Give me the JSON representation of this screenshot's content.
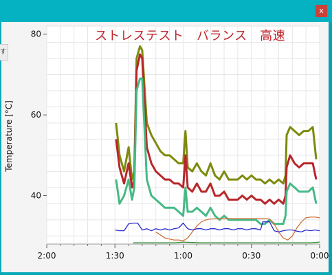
{
  "window": {
    "close_glyph": "x",
    "side_tab_text": "す"
  },
  "chart_data": {
    "type": "line",
    "title": "ストレステスト　バランス　高速",
    "ylabel": "Temperature [°C]",
    "xlabel": "",
    "x_tick_labels": [
      "2:00",
      "1:30",
      "1:00",
      "0:30",
      "0:00"
    ],
    "x_tick_values": [
      120,
      90,
      60,
      30,
      0
    ],
    "xlim": [
      120,
      0
    ],
    "y_tick_labels": [
      "80",
      "60",
      "40"
    ],
    "y_tick_values": [
      80,
      60,
      40
    ],
    "ylim": [
      28,
      82
    ],
    "grid": true,
    "legend": "none",
    "series_colors": [
      "#7d8a0c",
      "#b8262a",
      "#46b985",
      "#d0713a",
      "#2a2ac8",
      "#2e8b2e"
    ],
    "series": [
      {
        "x": [
          89.5,
          88,
          86,
          84,
          82.5,
          81.5,
          80.5,
          79,
          78,
          76,
          74,
          72,
          70,
          68,
          66,
          64,
          62,
          60,
          59,
          58,
          56,
          54,
          52,
          50,
          48,
          46,
          44,
          42,
          40,
          38,
          36,
          34,
          32,
          30,
          28,
          26,
          24,
          22,
          20,
          18,
          16,
          15,
          14.5,
          13,
          11,
          9,
          7,
          5,
          3,
          1.5
        ],
        "y": [
          58,
          50,
          46,
          52,
          44,
          46,
          74,
          77,
          76,
          58,
          55,
          53,
          51,
          50,
          50,
          49,
          48,
          48,
          56,
          47,
          46,
          48,
          46,
          45,
          48,
          45,
          44,
          46,
          44,
          44,
          44,
          45,
          44,
          45,
          44,
          44,
          43,
          44,
          43,
          44,
          43,
          45,
          55,
          57,
          56,
          55,
          56,
          56,
          57,
          49
        ]
      },
      {
        "x": [
          89.5,
          88,
          86,
          84,
          82.5,
          81.5,
          80.5,
          79,
          78,
          76,
          74,
          72,
          70,
          68,
          66,
          64,
          62,
          60,
          59,
          58,
          56,
          54,
          52,
          50,
          48,
          46,
          44,
          42,
          40,
          38,
          36,
          34,
          32,
          30,
          28,
          26,
          24,
          22,
          20,
          18,
          16,
          15,
          14.5,
          13,
          11,
          9,
          7,
          5,
          3,
          1.5
        ],
        "y": [
          54,
          47,
          43,
          48,
          42,
          44,
          71,
          75,
          74,
          52,
          48,
          46,
          45,
          44,
          44,
          43,
          43,
          42,
          50,
          42,
          41,
          43,
          41,
          41,
          43,
          40,
          40,
          41,
          39,
          39,
          39,
          40,
          39,
          40,
          39,
          39,
          38,
          39,
          38,
          39,
          38,
          40,
          47,
          50,
          48,
          47,
          48,
          48,
          48,
          44
        ]
      },
      {
        "x": [
          89.5,
          88,
          86,
          84,
          82.5,
          81.5,
          80.5,
          79,
          78,
          76,
          74,
          72,
          70,
          68,
          66,
          64,
          62,
          60,
          59,
          58,
          56,
          54,
          52,
          50,
          48,
          46,
          44,
          42,
          40,
          38,
          36,
          34,
          32,
          30,
          28,
          26,
          24,
          22,
          20,
          18,
          16,
          15,
          14.5,
          13,
          11,
          9,
          7,
          5,
          3,
          1.5
        ],
        "y": [
          44,
          38,
          40,
          44,
          39,
          42,
          66,
          69,
          69,
          44,
          40,
          39,
          38,
          37,
          37,
          37,
          36,
          35,
          42,
          36,
          36,
          37,
          36,
          35,
          37,
          35,
          34,
          35,
          34,
          34,
          34,
          34,
          34,
          34,
          34,
          33,
          33,
          34,
          33,
          33,
          33,
          35,
          41,
          43,
          42,
          41,
          41,
          41,
          42,
          38
        ]
      },
      {
        "x": [
          72,
          68,
          64,
          62,
          60,
          58,
          56,
          54,
          52,
          50,
          48,
          46,
          44,
          42,
          40,
          38,
          36,
          34,
          32,
          30,
          28,
          26,
          24,
          22,
          20,
          18,
          16,
          14,
          12,
          10,
          8,
          6,
          4,
          2,
          0
        ],
        "y": [
          31,
          29.5,
          29,
          29,
          28.8,
          29.5,
          31,
          32.5,
          33.5,
          34,
          34.2,
          34.3,
          34.3,
          34.3,
          34.3,
          34.3,
          34.3,
          34.3,
          34.3,
          34.3,
          34.3,
          34.3,
          34.3,
          34.2,
          33,
          31,
          29.5,
          29,
          30,
          32,
          33.5,
          34.5,
          34.7,
          34.7,
          34.5
        ]
      },
      {
        "x": [
          90,
          88,
          86,
          84,
          82,
          80,
          78,
          76,
          74,
          72,
          70,
          68,
          66,
          64,
          62,
          60,
          58,
          56,
          54,
          52,
          50,
          48,
          46,
          44,
          42,
          40,
          38,
          36,
          34,
          32,
          30,
          28,
          26,
          25,
          24,
          22,
          20,
          18,
          16,
          14,
          12,
          10,
          8,
          6,
          4,
          2,
          0
        ],
        "y": [
          31.5,
          31.3,
          31.3,
          33,
          33.2,
          33.2,
          31.5,
          31.8,
          31.3,
          31.8,
          31.5,
          31.8,
          31.5,
          31.8,
          32,
          33.2,
          31.8,
          31.5,
          31.8,
          31.8,
          31.5,
          31.8,
          31.8,
          31.5,
          31.8,
          31.8,
          31.5,
          31.8,
          31.8,
          31.5,
          31.8,
          31.8,
          31.5,
          33.5,
          33.5,
          33.5,
          31.3,
          31,
          31.3,
          31.5,
          31.5,
          31.2,
          31,
          31.5,
          31.3,
          31.5,
          31.3
        ]
      },
      {
        "x": [
          82,
          80,
          76,
          72,
          68,
          64,
          60,
          56,
          52,
          48,
          44,
          40,
          36,
          32,
          28,
          24,
          20,
          16,
          12,
          8,
          4,
          0
        ],
        "y": [
          28.3,
          28.3,
          28.3,
          28.3,
          28.3,
          28.3,
          28.5,
          28.4,
          28.3,
          28.3,
          28.3,
          28.3,
          28.3,
          28.3,
          28.3,
          28.3,
          28.3,
          28.3,
          28.3,
          28.3,
          28.3,
          28.5
        ]
      }
    ]
  }
}
